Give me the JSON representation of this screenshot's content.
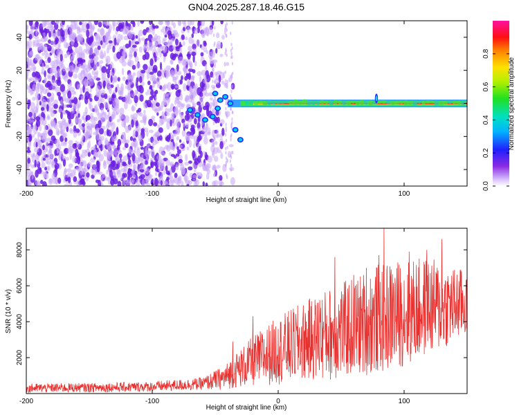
{
  "chart_data": [
    {
      "type": "heatmap",
      "title": "GN04.2025.287.18.46.G15",
      "xlabel": "Height of straight line (km)",
      "ylabel": "Frequency (Hz)",
      "xlim": [
        -200,
        150
      ],
      "ylim": [
        -50,
        50
      ],
      "xticks": [
        -200,
        -100,
        0,
        100
      ],
      "yticks": [
        -40,
        -20,
        0,
        20,
        40
      ],
      "colorbar": {
        "label": "Normalized spectral amplitude",
        "range": [
          0,
          1
        ],
        "ticks": [
          0.0,
          0.2,
          0.4,
          0.6,
          0.8
        ],
        "colormap": "hsv-rainbow (purple-blue-cyan-green-yellow-red-magenta)"
      },
      "features": {
        "noise_region_x": [
          -200,
          -40
        ],
        "noise_cutoff_x": -40,
        "signal_start_x": -70,
        "signal_frequency_hz": 0,
        "signal_band_halfwidth_hz": 1.5,
        "strong_signal_start_x": -20,
        "spike_x": 78,
        "spike_frequency_hz": 6,
        "dispersed_tail": [
          {
            "x": -70,
            "y": -4
          },
          {
            "x": -64,
            "y": -7
          },
          {
            "x": -58,
            "y": -10
          },
          {
            "x": -52,
            "y": -8
          },
          {
            "x": -48,
            "y": -3
          },
          {
            "x": -46,
            "y": 2
          },
          {
            "x": -50,
            "y": 6
          },
          {
            "x": -42,
            "y": 4
          },
          {
            "x": -38,
            "y": 0
          },
          {
            "x": -34,
            "y": -16
          },
          {
            "x": -30,
            "y": -22
          }
        ]
      },
      "colors": {
        "noise_dark": "#6a1ee0",
        "noise_light": "#c9a6f7",
        "band": "#ff2020"
      }
    },
    {
      "type": "line",
      "xlabel": "Height of straight line (km)",
      "ylabel": "SNR (10 * v/v)",
      "xlim": [
        -200,
        150
      ],
      "ylim": [
        0,
        9200
      ],
      "xticks": [
        -200,
        -100,
        0,
        100
      ],
      "yticks": [
        2000,
        4000,
        6000,
        8000
      ],
      "color": "#e8302e",
      "envelope": [
        {
          "x": -200,
          "base": 300,
          "amp": 250
        },
        {
          "x": -150,
          "base": 330,
          "amp": 260
        },
        {
          "x": -100,
          "base": 380,
          "amp": 280
        },
        {
          "x": -60,
          "base": 550,
          "amp": 350
        },
        {
          "x": -42,
          "base": 900,
          "amp": 700
        },
        {
          "x": -36,
          "base": 1200,
          "amp": 900
        },
        {
          "x": -20,
          "base": 1800,
          "amp": 1400
        },
        {
          "x": 0,
          "base": 2400,
          "amp": 1900
        },
        {
          "x": 20,
          "base": 2900,
          "amp": 2200
        },
        {
          "x": 40,
          "base": 3300,
          "amp": 2600
        },
        {
          "x": 60,
          "base": 3700,
          "amp": 2800
        },
        {
          "x": 80,
          "base": 4200,
          "amp": 3100
        },
        {
          "x": 100,
          "base": 4500,
          "amp": 3000
        },
        {
          "x": 120,
          "base": 4800,
          "amp": 2800
        },
        {
          "x": 150,
          "base": 5000,
          "amp": 1800
        }
      ],
      "peaks": [
        {
          "x": -36,
          "y": 2900
        },
        {
          "x": -20,
          "y": 4300
        },
        {
          "x": 0,
          "y": 3600
        },
        {
          "x": 33,
          "y": 5200
        },
        {
          "x": 45,
          "y": 7600
        },
        {
          "x": 60,
          "y": 6600
        },
        {
          "x": 70,
          "y": 7000
        },
        {
          "x": 80,
          "y": 7700
        },
        {
          "x": 84,
          "y": 9200
        },
        {
          "x": 95,
          "y": 7300
        },
        {
          "x": 104,
          "y": 7900
        },
        {
          "x": 118,
          "y": 8000
        },
        {
          "x": 130,
          "y": 8600
        },
        {
          "x": 145,
          "y": 6900
        }
      ]
    }
  ]
}
